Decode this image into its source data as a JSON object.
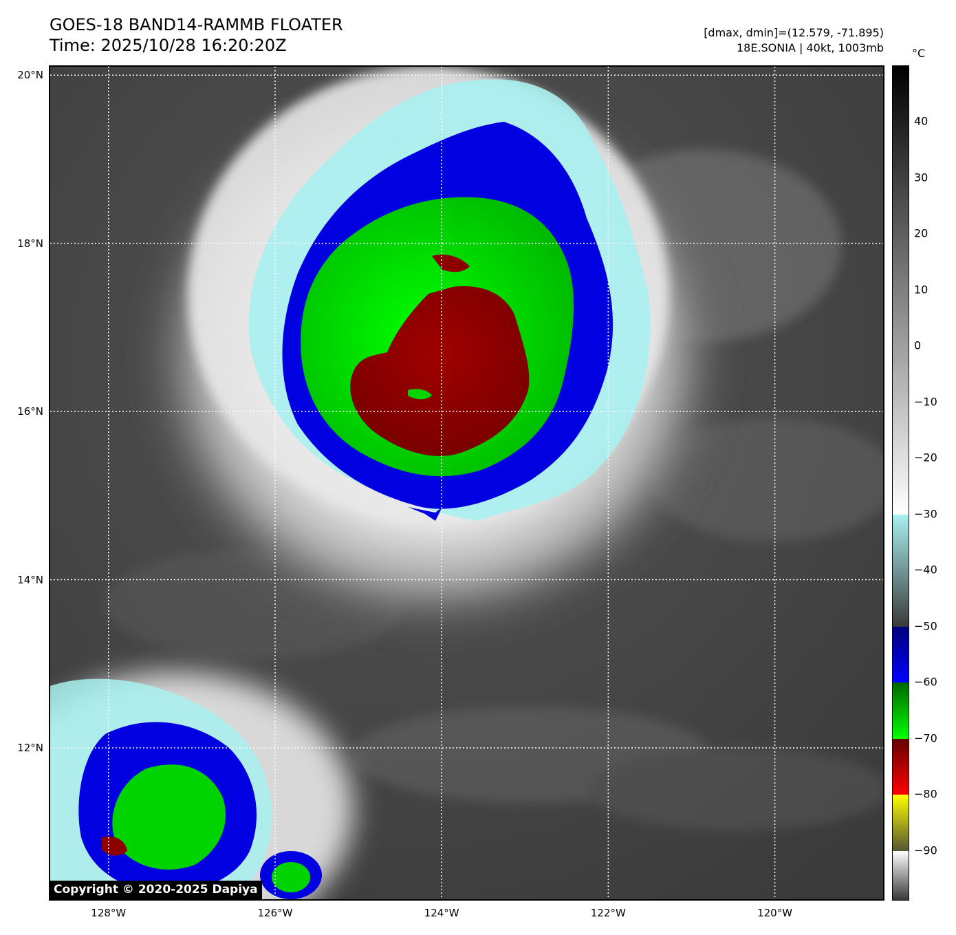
{
  "header": {
    "title_line1": "GOES-18 BAND14-RAMMB FLOATER",
    "title_line2": "Time: 2025/10/28 16:20:20Z",
    "range_text": "[dmax, dmin]=(12.579, -71.895)",
    "storm_text": "18E.SONIA | 40kt, 1003mb"
  },
  "map": {
    "lat_labels": [
      "20°N",
      "18°N",
      "16°N",
      "14°N",
      "12°N"
    ],
    "lon_labels": [
      "128°W",
      "126°W",
      "124°W",
      "122°W",
      "120°W"
    ],
    "lat_values": [
      20,
      18,
      16,
      14,
      12
    ],
    "lon_values": [
      -128,
      -126,
      -124,
      -122,
      -120
    ],
    "lat_range": [
      10.2,
      20.1
    ],
    "lon_range": [
      -128.7,
      -118.7
    ],
    "gridlines": "dotted white",
    "background_color": "#3c3c3c",
    "copyright": "Copyright © 2020-2025 Dapiya"
  },
  "colorbar": {
    "unit": "°C",
    "range": [
      -99,
      50
    ],
    "ticks": [
      "40",
      "30",
      "20",
      "10",
      "0",
      "−10",
      "−20",
      "−30",
      "−40",
      "−50",
      "−60",
      "−70",
      "−80",
      "−90"
    ],
    "tick_values": [
      40,
      30,
      20,
      10,
      0,
      -10,
      -20,
      -30,
      -40,
      -50,
      -60,
      -70,
      -80,
      -90
    ],
    "segments": [
      {
        "from": 50,
        "to": -30,
        "colors": [
          "#000000",
          "#ffffff"
        ]
      },
      {
        "from": -30,
        "to": -50,
        "colors": [
          "#a8f0f0",
          "#3a3a3a"
        ]
      },
      {
        "from": -50,
        "to": -60,
        "colors": [
          "#00007a",
          "#0000ff"
        ]
      },
      {
        "from": -60,
        "to": -70,
        "colors": [
          "#006600",
          "#00ff00"
        ]
      },
      {
        "from": -70,
        "to": -80,
        "colors": [
          "#660000",
          "#ff0000"
        ]
      },
      {
        "from": -80,
        "to": -90,
        "colors": [
          "#ffff00",
          "#555533"
        ]
      },
      {
        "from": -90,
        "to": -99,
        "colors": [
          "#ffffff",
          "#333333"
        ]
      }
    ]
  },
  "colors": {
    "very_cold": "#8c0000",
    "cold": "#00d400",
    "cool": "#0000e0",
    "cyan_fringe": "#a8f0f0",
    "cloud_white": "#e6e6e6"
  }
}
